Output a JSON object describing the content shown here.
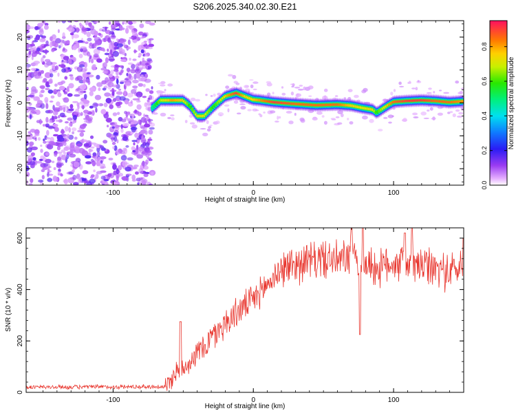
{
  "title": "S206.2025.340.02.30.E21",
  "chart_data": [
    {
      "type": "heatmap",
      "xlabel": "Height of straight line (km)",
      "ylabel": "Frequency (Hz)",
      "xlim": [
        -162,
        150
      ],
      "ylim": [
        -25,
        25
      ],
      "xticks": [
        -100,
        0,
        100
      ],
      "yticks": [
        -20,
        -10,
        0,
        10,
        20
      ],
      "colorbar": {
        "label": "Normalized spectral amplitude",
        "range": [
          0,
          0.95
        ],
        "ticks": [
          0.0,
          0.2,
          0.4,
          0.6,
          0.8
        ]
      },
      "noise_region_x": [
        -162,
        -72
      ],
      "ridge": {
        "x": [
          -72,
          -66,
          -58,
          -50,
          -45,
          -40,
          -35,
          -28,
          -20,
          -12,
          -6,
          0,
          5,
          15,
          30,
          45,
          60,
          70,
          78,
          85,
          88,
          95,
          100,
          110,
          120,
          130,
          140,
          150
        ],
        "freq": [
          -1.5,
          0.8,
          0.8,
          0.8,
          -1,
          -4,
          -4,
          -1,
          2,
          3,
          2,
          1,
          0.8,
          0.2,
          -0.3,
          -0.7,
          -0.5,
          -0.8,
          -1.5,
          -2,
          -3,
          -1,
          0.3,
          0.6,
          0.8,
          0.6,
          0.2,
          0.5
        ],
        "amplitude": [
          0.5,
          0.7,
          0.85,
          0.8,
          0.6,
          0.75,
          0.75,
          0.6,
          0.8,
          0.95,
          0.8,
          0.8,
          0.85,
          0.95,
          0.9,
          0.9,
          0.9,
          0.8,
          0.75,
          0.8,
          0.6,
          0.8,
          0.9,
          0.95,
          0.95,
          0.9,
          0.9,
          0.85
        ]
      }
    },
    {
      "type": "line",
      "xlabel": "Height of straight line (km)",
      "ylabel": "SNR (10 * v/v)",
      "xlim": [
        -162,
        150
      ],
      "ylim": [
        0,
        640
      ],
      "xticks": [
        -100,
        0,
        100
      ],
      "yticks": [
        0,
        200,
        400,
        600
      ],
      "color": "#e8342c",
      "series": [
        {
          "name": "SNR",
          "trend_x": [
            -162,
            -62,
            -55,
            -45,
            -35,
            -20,
            -10,
            0,
            10,
            20,
            30,
            40,
            50,
            60,
            70,
            80,
            90,
            100,
            110,
            120,
            130,
            140,
            150
          ],
          "trend_y": [
            20,
            22,
            80,
            120,
            180,
            270,
            320,
            360,
            420,
            480,
            500,
            510,
            520,
            510,
            530,
            500,
            480,
            510,
            500,
            490,
            480,
            470,
            490
          ],
          "spikes_x": [
            -52,
            70,
            76,
            78,
            108,
            113,
            150
          ],
          "spikes_y": [
            275,
            640,
            225,
            640,
            620,
            640,
            600
          ]
        }
      ]
    }
  ]
}
